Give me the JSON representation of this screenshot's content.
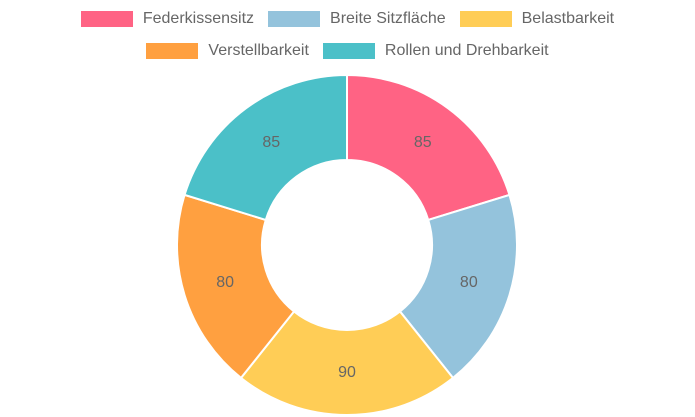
{
  "chart_data": {
    "type": "pie",
    "donut": true,
    "legend_position": "top",
    "categories": [
      "Federkissensitz",
      "Breite Sitzfläche",
      "Belastbarkeit",
      "Verstellbarkeit",
      "Rollen und Drehbarkeit"
    ],
    "values": [
      85,
      80,
      90,
      80,
      85
    ],
    "colors": [
      "#ff6384",
      "#94c3dc",
      "#ffcd56",
      "#ffa040",
      "#4bc0c8"
    ],
    "value_labels": [
      "85",
      "80",
      "90",
      "80",
      "85"
    ],
    "legend_rows": [
      [
        0,
        1,
        2
      ],
      [
        3,
        4
      ]
    ]
  }
}
